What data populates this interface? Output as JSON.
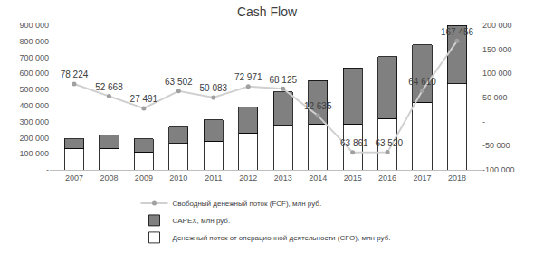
{
  "chart_data": {
    "type": "bar",
    "title": "Cash Flow",
    "stacked": true,
    "grid": false,
    "legend": "bottom",
    "categories": [
      "2007",
      "2008",
      "2009",
      "2010",
      "2011",
      "2012",
      "2013",
      "2014",
      "2015",
      "2016",
      "2017",
      "2018"
    ],
    "series": [
      {
        "name": "Денежный поток от операционной деятельности (CFO), млн руб.",
        "type": "bar",
        "color": "#ffffff",
        "values": [
          135000,
          135000,
          110000,
          165000,
          180000,
          230000,
          278000,
          285000,
          285000,
          320000,
          420000,
          535000
        ]
      },
      {
        "name": "CAPEX, млн руб.",
        "type": "bar",
        "color": "#808080",
        "values": [
          57000,
          82000,
          83000,
          100000,
          132000,
          160000,
          207000,
          270000,
          350000,
          385000,
          358000,
          365000
        ]
      },
      {
        "name": "Свободный денежный поток (FCF), млн руб.",
        "type": "line",
        "axis": "y2",
        "color": "#d0d0d0",
        "marker": "circle",
        "data_labels": true,
        "values": [
          78224,
          52668,
          27491,
          63502,
          50083,
          72971,
          68125,
          12635,
          -63861,
          -63520,
          64610,
          167456
        ],
        "value_labels": [
          "78 224",
          "52 668",
          "27 491",
          "63 502",
          "50 083",
          "72 971",
          "68 125",
          "12 635",
          "-63 861",
          "-63 520",
          "64 610",
          "167 456"
        ]
      }
    ],
    "ylim": [
      0,
      900000
    ],
    "yticks": [
      {
        "value": 0,
        "label": "-"
      },
      {
        "value": 100000,
        "label": "100 000"
      },
      {
        "value": 200000,
        "label": "200 000"
      },
      {
        "value": 300000,
        "label": "300 000"
      },
      {
        "value": 400000,
        "label": "400 000"
      },
      {
        "value": 500000,
        "label": "500 000"
      },
      {
        "value": 600000,
        "label": "600 000"
      },
      {
        "value": 700000,
        "label": "700 000"
      },
      {
        "value": 800000,
        "label": "800 000"
      },
      {
        "value": 900000,
        "label": "900 000"
      }
    ],
    "y2lim": [
      -100000,
      200000
    ],
    "y2ticks": [
      {
        "value": -100000,
        "label": "-100 000"
      },
      {
        "value": -50000,
        "label": "-50 000"
      },
      {
        "value": 0,
        "label": "-"
      },
      {
        "value": 50000,
        "label": "50 000"
      },
      {
        "value": 100000,
        "label": "100 000"
      },
      {
        "value": 150000,
        "label": "150 000"
      },
      {
        "value": 200000,
        "label": "200 000"
      }
    ]
  }
}
